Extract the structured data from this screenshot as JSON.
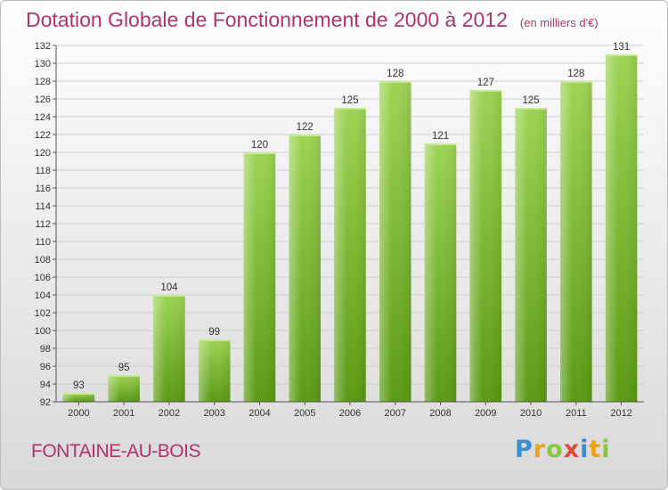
{
  "title": "Dotation Globale de Fonctionnement de 2000 à 2012",
  "subtitle": "(en milliers d'€)",
  "commune": "FONTAINE-AU-BOIS",
  "logo": "Proxiti",
  "colors": {
    "title": "#b1336a",
    "bar_light": "#9ed455",
    "bar_dark": "#5a9a14"
  },
  "chart_data": {
    "type": "bar",
    "title": "Dotation Globale de Fonctionnement de 2000 à 2012",
    "subtitle": "(en milliers d'€)",
    "xlabel": "",
    "ylabel": "",
    "categories": [
      "2000",
      "2001",
      "2002",
      "2003",
      "2004",
      "2005",
      "2006",
      "2007",
      "2008",
      "2009",
      "2010",
      "2011",
      "2012"
    ],
    "values": [
      93,
      95,
      104,
      99,
      120,
      122,
      125,
      128,
      121,
      127,
      125,
      128,
      131
    ],
    "ylim": [
      92,
      132
    ],
    "yticks": [
      92,
      94,
      96,
      98,
      100,
      102,
      104,
      106,
      108,
      110,
      112,
      114,
      116,
      118,
      120,
      122,
      124,
      126,
      128,
      130,
      132
    ],
    "grid": true
  }
}
